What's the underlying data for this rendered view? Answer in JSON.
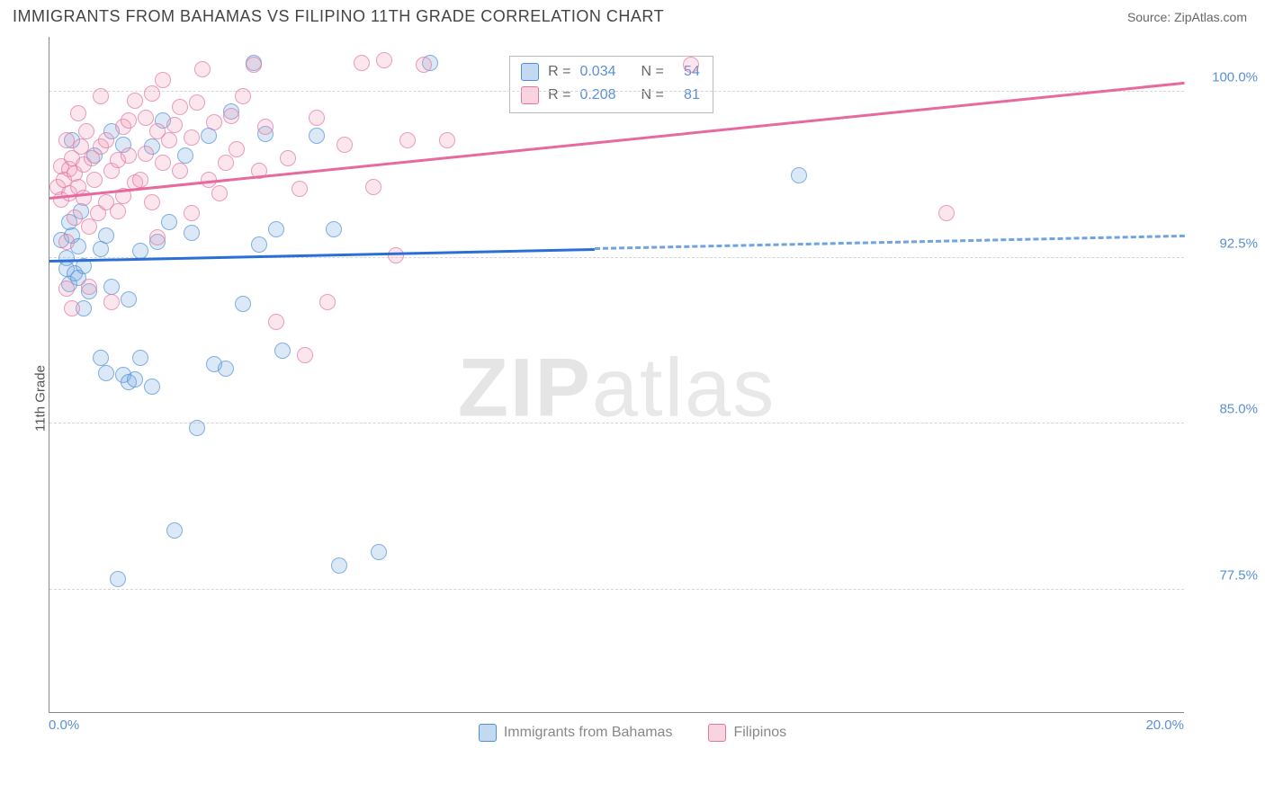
{
  "header": {
    "title": "IMMIGRANTS FROM BAHAMAS VS FILIPINO 11TH GRADE CORRELATION CHART",
    "source_label": "Source: ",
    "source_value": "ZipAtlas.com"
  },
  "y_axis_label": "11th Grade",
  "watermark": {
    "bold": "ZIP",
    "rest": "atlas"
  },
  "chart": {
    "type": "scatter",
    "background_color": "#ffffff",
    "grid_color": "#d6d6d6",
    "text_color": "#5b8fd6",
    "xlim": [
      0.0,
      20.0
    ],
    "ylim": [
      72.0,
      102.5
    ],
    "x_ticks": [
      {
        "value": 0.0,
        "label": "0.0%"
      },
      {
        "value": 20.0,
        "label": "20.0%"
      }
    ],
    "y_ticks": [
      {
        "value": 77.5,
        "label": "77.5%"
      },
      {
        "value": 85.0,
        "label": "85.0%"
      },
      {
        "value": 92.5,
        "label": "92.5%"
      },
      {
        "value": 100.0,
        "label": "100.0%"
      }
    ],
    "series": [
      {
        "name": "Immigrants from Bahamas",
        "color_fill": "rgba(113,165,224,0.35)",
        "color_border": "#4f8fd6",
        "marker_class": "blue",
        "corr_R": "0.034",
        "corr_N": "54",
        "trend": {
          "x0": 0.0,
          "y0": 92.3,
          "x1": 20.0,
          "y1": 93.4,
          "solid_until_x": 9.6,
          "solid_class": "solid-blue",
          "dash_class": "dash-blue"
        },
        "points": [
          [
            0.2,
            93.3
          ],
          [
            0.3,
            92.5
          ],
          [
            0.3,
            92.0
          ],
          [
            0.35,
            91.3
          ],
          [
            0.35,
            94.1
          ],
          [
            0.4,
            93.5
          ],
          [
            0.4,
            97.8
          ],
          [
            0.45,
            91.8
          ],
          [
            0.5,
            91.6
          ],
          [
            0.5,
            93.0
          ],
          [
            0.55,
            94.6
          ],
          [
            0.6,
            92.1
          ],
          [
            0.6,
            90.2
          ],
          [
            0.7,
            91.0
          ],
          [
            0.8,
            97.1
          ],
          [
            0.9,
            92.9
          ],
          [
            0.9,
            88.0
          ],
          [
            1.0,
            87.3
          ],
          [
            1.0,
            93.5
          ],
          [
            1.1,
            98.2
          ],
          [
            1.1,
            91.2
          ],
          [
            1.2,
            78.0
          ],
          [
            1.3,
            97.6
          ],
          [
            1.3,
            87.2
          ],
          [
            1.4,
            90.6
          ],
          [
            1.4,
            86.9
          ],
          [
            1.5,
            87.0
          ],
          [
            1.6,
            92.8
          ],
          [
            1.6,
            88.0
          ],
          [
            1.8,
            86.7
          ],
          [
            1.8,
            97.5
          ],
          [
            1.9,
            93.2
          ],
          [
            2.0,
            98.7
          ],
          [
            2.1,
            94.1
          ],
          [
            2.2,
            80.2
          ],
          [
            2.4,
            97.1
          ],
          [
            2.5,
            93.6
          ],
          [
            2.6,
            84.8
          ],
          [
            2.8,
            98.0
          ],
          [
            2.9,
            87.7
          ],
          [
            3.1,
            87.5
          ],
          [
            3.2,
            99.1
          ],
          [
            3.4,
            90.4
          ],
          [
            3.6,
            101.3
          ],
          [
            3.7,
            93.1
          ],
          [
            3.8,
            98.1
          ],
          [
            4.0,
            93.8
          ],
          [
            4.1,
            88.3
          ],
          [
            4.7,
            98.0
          ],
          [
            5.0,
            93.8
          ],
          [
            5.1,
            78.6
          ],
          [
            5.8,
            79.2
          ],
          [
            6.7,
            101.3
          ],
          [
            13.2,
            96.2
          ]
        ]
      },
      {
        "name": "Filipinos",
        "color_fill": "rgba(240,150,175,0.33)",
        "color_border": "#e176a0",
        "marker_class": "pink",
        "corr_R": "0.208",
        "corr_N": "81",
        "trend": {
          "x0": 0.0,
          "y0": 95.1,
          "x1": 20.0,
          "y1": 100.3,
          "solid_until_x": 20.0,
          "solid_class": "solid-pink",
          "dash_class": ""
        },
        "points": [
          [
            0.15,
            95.7
          ],
          [
            0.2,
            95.1
          ],
          [
            0.2,
            96.6
          ],
          [
            0.25,
            96.0
          ],
          [
            0.3,
            97.8
          ],
          [
            0.3,
            93.2
          ],
          [
            0.3,
            91.1
          ],
          [
            0.35,
            95.4
          ],
          [
            0.35,
            96.5
          ],
          [
            0.4,
            97.0
          ],
          [
            0.4,
            90.2
          ],
          [
            0.45,
            96.3
          ],
          [
            0.45,
            94.3
          ],
          [
            0.5,
            95.7
          ],
          [
            0.5,
            99.0
          ],
          [
            0.55,
            97.5
          ],
          [
            0.6,
            95.2
          ],
          [
            0.6,
            96.7
          ],
          [
            0.65,
            98.2
          ],
          [
            0.7,
            93.9
          ],
          [
            0.7,
            91.2
          ],
          [
            0.75,
            97.0
          ],
          [
            0.8,
            96.0
          ],
          [
            0.85,
            94.5
          ],
          [
            0.9,
            97.5
          ],
          [
            0.9,
            99.8
          ],
          [
            1.0,
            95.0
          ],
          [
            1.0,
            97.8
          ],
          [
            1.1,
            96.4
          ],
          [
            1.1,
            90.5
          ],
          [
            1.2,
            96.9
          ],
          [
            1.2,
            94.6
          ],
          [
            1.3,
            98.4
          ],
          [
            1.3,
            95.3
          ],
          [
            1.4,
            97.1
          ],
          [
            1.4,
            98.7
          ],
          [
            1.5,
            95.9
          ],
          [
            1.5,
            99.6
          ],
          [
            1.6,
            96.0
          ],
          [
            1.7,
            98.8
          ],
          [
            1.7,
            97.2
          ],
          [
            1.8,
            95.0
          ],
          [
            1.8,
            99.9
          ],
          [
            1.9,
            98.2
          ],
          [
            1.9,
            93.4
          ],
          [
            2.0,
            100.5
          ],
          [
            2.0,
            96.8
          ],
          [
            2.1,
            97.8
          ],
          [
            2.2,
            98.5
          ],
          [
            2.3,
            96.4
          ],
          [
            2.3,
            99.3
          ],
          [
            2.5,
            94.5
          ],
          [
            2.5,
            97.9
          ],
          [
            2.6,
            99.5
          ],
          [
            2.7,
            101.0
          ],
          [
            2.8,
            96.0
          ],
          [
            2.9,
            98.6
          ],
          [
            3.0,
            95.4
          ],
          [
            3.1,
            96.8
          ],
          [
            3.2,
            98.9
          ],
          [
            3.3,
            97.4
          ],
          [
            3.4,
            99.8
          ],
          [
            3.6,
            101.2
          ],
          [
            3.7,
            96.4
          ],
          [
            3.8,
            98.4
          ],
          [
            4.0,
            89.6
          ],
          [
            4.2,
            97.0
          ],
          [
            4.4,
            95.6
          ],
          [
            4.5,
            88.1
          ],
          [
            4.7,
            98.8
          ],
          [
            4.9,
            90.5
          ],
          [
            5.2,
            97.6
          ],
          [
            5.5,
            101.3
          ],
          [
            5.7,
            95.7
          ],
          [
            5.9,
            101.4
          ],
          [
            6.1,
            92.6
          ],
          [
            6.3,
            97.8
          ],
          [
            6.6,
            101.2
          ],
          [
            7.0,
            97.8
          ],
          [
            11.3,
            101.2
          ],
          [
            15.8,
            94.5
          ]
        ]
      }
    ],
    "legend_corr": {
      "R_label": "R =",
      "N_label": "N ="
    },
    "bottom_legend": [
      {
        "swatch": "sw-blue",
        "label": "Immigrants from Bahamas"
      },
      {
        "swatch": "sw-pink",
        "label": "Filipinos"
      }
    ]
  }
}
